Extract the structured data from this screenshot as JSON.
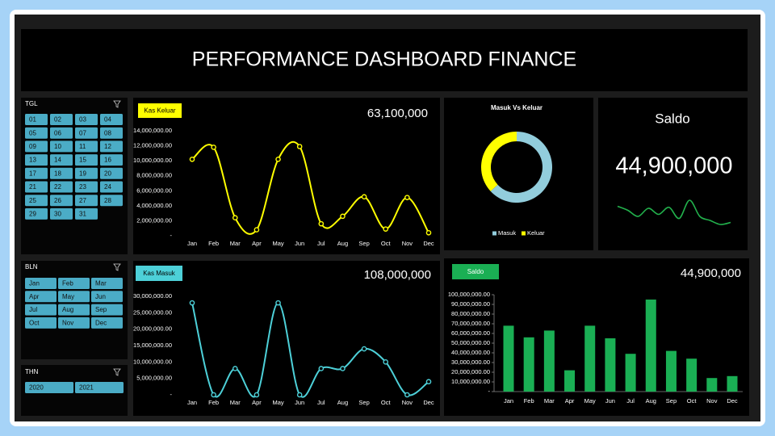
{
  "title": "PERFORMANCE DASHBOARD FINANCE",
  "slicers": [
    {
      "title": "TGL",
      "items": [
        "01",
        "02",
        "03",
        "04",
        "05",
        "06",
        "07",
        "08",
        "09",
        "10",
        "11",
        "12",
        "13",
        "14",
        "15",
        "16",
        "17",
        "18",
        "19",
        "20",
        "21",
        "22",
        "23",
        "24",
        "25",
        "26",
        "27",
        "28",
        "29",
        "30",
        "31"
      ]
    },
    {
      "title": "BLN",
      "items": [
        "Jan",
        "Feb",
        "Mar",
        "Apr",
        "May",
        "Jun",
        "Jul",
        "Aug",
        "Sep",
        "Oct",
        "Nov",
        "Dec"
      ]
    },
    {
      "title": "THN",
      "items": [
        "2020",
        "2021"
      ]
    }
  ],
  "chart_data": [
    {
      "type": "line",
      "title": "Kas Keluar",
      "total": "63,100,000",
      "color": "#ffff00",
      "categories": [
        "Jan",
        "Feb",
        "Mar",
        "Apr",
        "May",
        "Jun",
        "Jul",
        "Aug",
        "Sep",
        "Oct",
        "Nov",
        "Dec"
      ],
      "values": [
        10200000,
        11800000,
        2400000,
        800000,
        10200000,
        11900000,
        1600000,
        2600000,
        5200000,
        900000,
        5100000,
        400000
      ],
      "ylim": [
        0,
        14000000
      ],
      "yticks": [
        {
          "value": 0,
          "label": "-"
        },
        {
          "value": 2000000,
          "label": "2,000,000.00"
        },
        {
          "value": 4000000,
          "label": "4,000,000.00"
        },
        {
          "value": 6000000,
          "label": "6,000,000.00"
        },
        {
          "value": 8000000,
          "label": "8,000,000.00"
        },
        {
          "value": 10000000,
          "label": "10,000,000.00"
        },
        {
          "value": 12000000,
          "label": "12,000,000.00"
        },
        {
          "value": 14000000,
          "label": "14,000,000.00"
        }
      ]
    },
    {
      "type": "line",
      "title": "Kas Masuk",
      "total": "108,000,000",
      "color": "#4dd0d8",
      "categories": [
        "Jan",
        "Feb",
        "Mar",
        "Apr",
        "May",
        "Jun",
        "Jul",
        "Aug",
        "Sep",
        "Oct",
        "Nov",
        "Dec"
      ],
      "values": [
        28000000,
        0,
        8000000,
        0,
        28000000,
        0,
        8000000,
        8000000,
        14000000,
        10000000,
        0,
        4000000
      ],
      "ylim": [
        0,
        30000000
      ],
      "yticks": [
        {
          "value": 0,
          "label": "-"
        },
        {
          "value": 5000000,
          "label": "5,000,000.00"
        },
        {
          "value": 10000000,
          "label": "10,000,000.00"
        },
        {
          "value": 15000000,
          "label": "15,000,000.00"
        },
        {
          "value": 20000000,
          "label": "20,000,000.00"
        },
        {
          "value": 25000000,
          "label": "25,000,000.00"
        },
        {
          "value": 30000000,
          "label": "30,000,000.00"
        }
      ]
    },
    {
      "type": "pie",
      "title": "Masuk Vs Keluar",
      "donut": true,
      "legend": "bottom",
      "categories": [
        "Masuk",
        "Keluar"
      ],
      "values": [
        108000000,
        63100000
      ],
      "colors": [
        "#92cddc",
        "#ffff00"
      ]
    },
    {
      "type": "sparkline",
      "title": "Saldo",
      "total": "44,900,000",
      "color": "#22b14c",
      "values": [
        22,
        18,
        12,
        20,
        14,
        21,
        10,
        28,
        12,
        8,
        4,
        6
      ]
    },
    {
      "type": "bar",
      "title": "Saldo",
      "total": "44,900,000",
      "color": "#1aaf54",
      "tick_marks": true,
      "categories": [
        "Jan",
        "Feb",
        "Mar",
        "Apr",
        "May",
        "Jun",
        "Jul",
        "Aug",
        "Sep",
        "Oct",
        "Nov",
        "Dec"
      ],
      "values": [
        68000000,
        56000000,
        63000000,
        22000000,
        68000000,
        55000000,
        39000000,
        95000000,
        42000000,
        34000000,
        14000000,
        16000000
      ],
      "ylim": [
        0,
        100000000
      ],
      "yticks": [
        {
          "value": 0,
          "label": "-"
        },
        {
          "value": 10000000,
          "label": "10,000,000.00"
        },
        {
          "value": 20000000,
          "label": "20,000,000.00"
        },
        {
          "value": 30000000,
          "label": "30,000,000.00"
        },
        {
          "value": 40000000,
          "label": "40,000,000.00"
        },
        {
          "value": 50000000,
          "label": "50,000,000.00"
        },
        {
          "value": 60000000,
          "label": "60,000,000.00"
        },
        {
          "value": 70000000,
          "label": "70,000,000.00"
        },
        {
          "value": 80000000,
          "label": "80,000,000.00"
        },
        {
          "value": 90000000,
          "label": "90,000,000.00"
        },
        {
          "value": 100000000,
          "label": "100,000,000.00"
        }
      ]
    }
  ]
}
